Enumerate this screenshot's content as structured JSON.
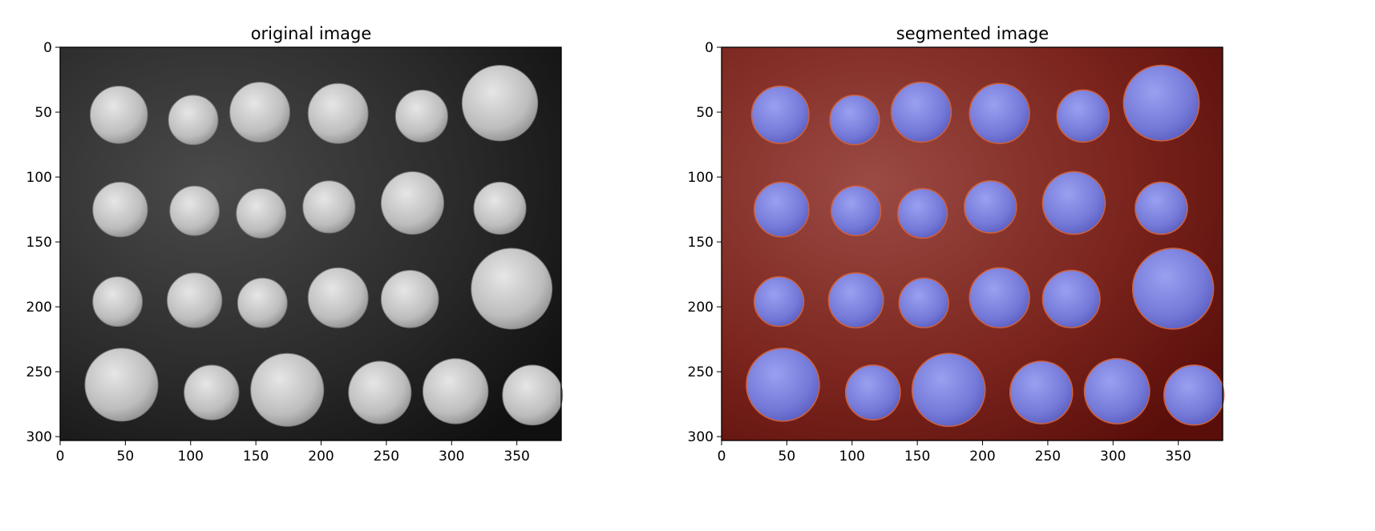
{
  "figure": {
    "panels": [
      {
        "id": "original",
        "title": "original image",
        "image_kind": "grayscale",
        "x_ticks": [
          "0",
          "50",
          "100",
          "150",
          "200",
          "250",
          "300",
          "350"
        ],
        "y_ticks": [
          "0",
          "50",
          "100",
          "150",
          "200",
          "250",
          "300"
        ]
      },
      {
        "id": "segmented",
        "title": "segmented image",
        "image_kind": "overlay",
        "x_ticks": [
          "0",
          "50",
          "100",
          "150",
          "200",
          "250",
          "300",
          "350"
        ],
        "y_ticks": [
          "0",
          "50",
          "100",
          "150",
          "200",
          "250",
          "300"
        ]
      }
    ],
    "image_extent": {
      "x": [
        0,
        384
      ],
      "y": [
        303,
        0
      ]
    },
    "colors": {
      "background_dark": "#1c1c1c",
      "coin_light": "#cfcfcf",
      "segment_background": "#7a1f1a",
      "segment_coin": "#7c7fe0",
      "segment_edge": "#d0603a"
    },
    "coins": [
      {
        "x": 45,
        "y": 52,
        "r": 22
      },
      {
        "x": 102,
        "y": 56,
        "r": 19
      },
      {
        "x": 153,
        "y": 50,
        "r": 23
      },
      {
        "x": 213,
        "y": 51,
        "r": 23
      },
      {
        "x": 277,
        "y": 53,
        "r": 20
      },
      {
        "x": 337,
        "y": 43,
        "r": 29
      },
      {
        "x": 46,
        "y": 125,
        "r": 21
      },
      {
        "x": 103,
        "y": 126,
        "r": 19
      },
      {
        "x": 154,
        "y": 128,
        "r": 19
      },
      {
        "x": 206,
        "y": 123,
        "r": 20
      },
      {
        "x": 270,
        "y": 120,
        "r": 24
      },
      {
        "x": 337,
        "y": 124,
        "r": 20
      },
      {
        "x": 44,
        "y": 196,
        "r": 19
      },
      {
        "x": 103,
        "y": 195,
        "r": 21
      },
      {
        "x": 155,
        "y": 197,
        "r": 19
      },
      {
        "x": 213,
        "y": 193,
        "r": 23
      },
      {
        "x": 268,
        "y": 194,
        "r": 22
      },
      {
        "x": 346,
        "y": 186,
        "r": 31
      },
      {
        "x": 47,
        "y": 260,
        "r": 28
      },
      {
        "x": 116,
        "y": 266,
        "r": 21
      },
      {
        "x": 174,
        "y": 264,
        "r": 28
      },
      {
        "x": 245,
        "y": 266,
        "r": 24
      },
      {
        "x": 303,
        "y": 265,
        "r": 25
      },
      {
        "x": 362,
        "y": 268,
        "r": 23
      }
    ]
  }
}
